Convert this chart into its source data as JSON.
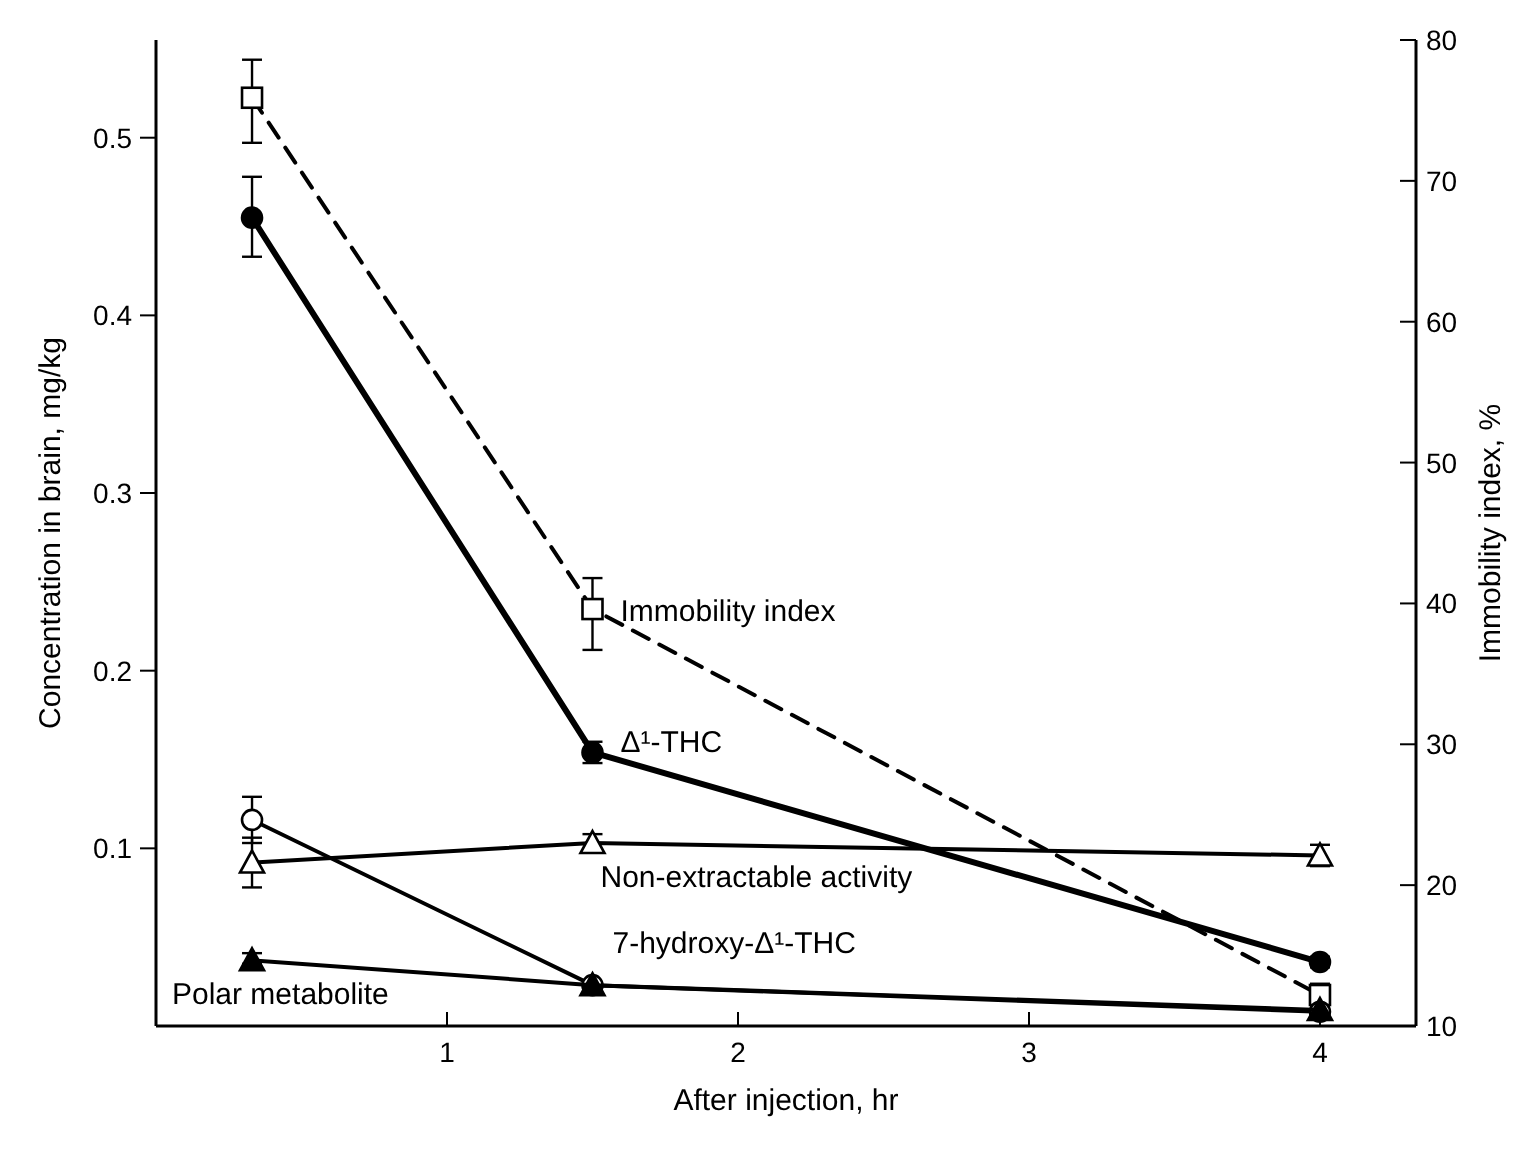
{
  "chart_data": {
    "type": "line",
    "xlabel": "After injection,  hr",
    "ylabel": "Concentration in brain,  mg/kg",
    "y2label": "Immobility index,  %",
    "xlim": [
      0,
      4.33
    ],
    "xticks": [
      1,
      2,
      3,
      4
    ],
    "ylim": [
      0,
      0.555
    ],
    "yticks": [
      0.1,
      0.2,
      0.3,
      0.4,
      0.5
    ],
    "y2lim": [
      10,
      80
    ],
    "y2ticks": [
      10,
      20,
      30,
      40,
      50,
      60,
      70,
      80
    ],
    "grid": false,
    "series": [
      {
        "name": "Immobility index",
        "color": "#000000",
        "axis": "y2",
        "marker": "square",
        "line_style": "dashed",
        "x": [
          0.33,
          1.5,
          4
        ],
        "values": [
          75.9,
          39.6,
          12.2
        ],
        "errors": [
          [
            72.7,
            78.6
          ],
          [
            36.7,
            41.8
          ],
          [
            11.4,
            13
          ]
        ]
      },
      {
        "name": "Δ¹-THC",
        "color": "#000000",
        "marker": "circle",
        "line_style": "solid",
        "x": [
          0.33,
          1.5,
          4
        ],
        "values": [
          0.455,
          0.154,
          0.036
        ],
        "errors": [
          [
            0.433,
            0.478
          ],
          [
            0.148,
            0.16
          ],
          [
            0.033,
            0.039
          ]
        ]
      },
      {
        "name": "Non-extractable activity",
        "color": "#000000",
        "marker": "triangle",
        "line_style": "solid",
        "x": [
          0.33,
          1.5,
          4
        ],
        "values": [
          0.092,
          0.103,
          0.096
        ],
        "errors": [
          [
            0.078,
            0.106
          ],
          [
            0.098,
            0.108
          ],
          [
            0.09,
            0.102
          ]
        ]
      },
      {
        "name": "7-hydroxy-Δ¹-THC",
        "color": "#000000",
        "marker": "circle",
        "line_style": "solid",
        "x": [
          0.33,
          1.5,
          4
        ],
        "values": [
          0.116,
          0.023,
          0.008
        ],
        "errors": [
          [
            0.103,
            0.129
          ],
          null,
          null
        ]
      },
      {
        "name": "Polar metabolite",
        "color": "#000000",
        "marker": "triangle",
        "line_style": "solid",
        "x": [
          0.33,
          1.5,
          4
        ],
        "values": [
          0.037,
          0.023,
          0.009
        ],
        "errors": [
          [
            0.035,
            0.041
          ],
          null,
          null
        ]
      }
    ]
  }
}
